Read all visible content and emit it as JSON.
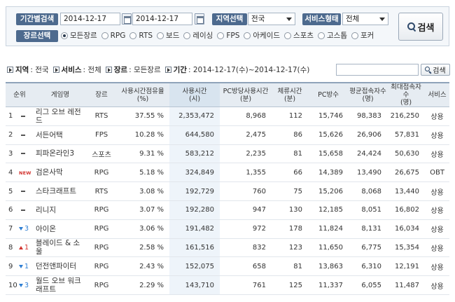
{
  "filters": {
    "period_label": "기간별검색",
    "start_date": "2014-12-17",
    "end_date": "2014-12-17",
    "tilde": "~",
    "region_label": "지역선택",
    "region_value": "전국",
    "service_label": "서비스형태",
    "service_value": "전체",
    "genre_label": "장르선택",
    "genres": [
      {
        "label": "모든장르",
        "checked": true
      },
      {
        "label": "RPG",
        "checked": false
      },
      {
        "label": "RTS",
        "checked": false
      },
      {
        "label": "보드",
        "checked": false
      },
      {
        "label": "레이싱",
        "checked": false
      },
      {
        "label": "FPS",
        "checked": false
      },
      {
        "label": "아케이드",
        "checked": false
      },
      {
        "label": "스포츠",
        "checked": false
      },
      {
        "label": "고스톱",
        "checked": false
      },
      {
        "label": "포커",
        "checked": false
      }
    ],
    "search_label": "검색"
  },
  "summary": {
    "region_key": "지역",
    "region_value": "전국",
    "service_key": "서비스",
    "service_value": "전체",
    "genre_key": "장르",
    "genre_value": "모든장르",
    "period_key": "기간",
    "period_value": "2014-12-17(수)~2014-12-17(수)",
    "search_label": "검색"
  },
  "table": {
    "headers": {
      "rank": "순위",
      "name": "게임명",
      "genre": "장르",
      "share": "사용시간점유율\n(%)",
      "usage": "사용시간\n(시)",
      "pc_avg": "PC방당사용시간\n(분)",
      "stay": "체류시간\n(분)",
      "pc_count": "PC방수",
      "avg_users": "평균접속자수\n(명)",
      "max_users": "최대접속자수\n(명)",
      "service": "서비스"
    },
    "rows": [
      {
        "rank": "1",
        "change_type": "same",
        "change": "",
        "name": "리그 오브 레전드",
        "genre": "RTS",
        "share": "37.55 %",
        "usage": "2,353,472",
        "pc_avg": "8,968",
        "stay": "112",
        "pc_count": "15,746",
        "avg_users": "98,383",
        "max_users": "216,250",
        "service": "상용"
      },
      {
        "rank": "2",
        "change_type": "same",
        "change": "",
        "name": "서든어택",
        "genre": "FPS",
        "share": "10.28 %",
        "usage": "644,580",
        "pc_avg": "2,475",
        "stay": "86",
        "pc_count": "15,626",
        "avg_users": "26,906",
        "max_users": "57,831",
        "service": "상용"
      },
      {
        "rank": "3",
        "change_type": "same",
        "change": "",
        "name": "피파온라인3",
        "genre": "스포츠",
        "share": "9.31 %",
        "usage": "583,212",
        "pc_avg": "2,235",
        "stay": "81",
        "pc_count": "15,658",
        "avg_users": "24,424",
        "max_users": "50,630",
        "service": "상용"
      },
      {
        "rank": "4",
        "change_type": "new",
        "change": "NEW",
        "name": "검은사막",
        "genre": "RPG",
        "share": "5.18 %",
        "usage": "324,849",
        "pc_avg": "1,355",
        "stay": "66",
        "pc_count": "14,389",
        "avg_users": "13,490",
        "max_users": "26,675",
        "service": "OBT"
      },
      {
        "rank": "5",
        "change_type": "same",
        "change": "",
        "name": "스타크래프트",
        "genre": "RTS",
        "share": "3.08 %",
        "usage": "192,729",
        "pc_avg": "760",
        "stay": "75",
        "pc_count": "15,206",
        "avg_users": "8,068",
        "max_users": "13,440",
        "service": "상용"
      },
      {
        "rank": "6",
        "change_type": "same",
        "change": "",
        "name": "리니지",
        "genre": "RPG",
        "share": "3.07 %",
        "usage": "192,280",
        "pc_avg": "947",
        "stay": "130",
        "pc_count": "12,185",
        "avg_users": "8,051",
        "max_users": "16,802",
        "service": "상용"
      },
      {
        "rank": "7",
        "change_type": "down",
        "change": "3",
        "name": "아이온",
        "genre": "RPG",
        "share": "3.06 %",
        "usage": "191,482",
        "pc_avg": "972",
        "stay": "178",
        "pc_count": "11,824",
        "avg_users": "8,131",
        "max_users": "16,034",
        "service": "상용"
      },
      {
        "rank": "8",
        "change_type": "up",
        "change": "1",
        "name": "블레이드 & 소울",
        "genre": "RPG",
        "share": "2.58 %",
        "usage": "161,516",
        "pc_avg": "832",
        "stay": "123",
        "pc_count": "11,650",
        "avg_users": "6,775",
        "max_users": "15,354",
        "service": "상용"
      },
      {
        "rank": "9",
        "change_type": "down",
        "change": "1",
        "name": "던전앤파이터",
        "genre": "RPG",
        "share": "2.43 %",
        "usage": "152,075",
        "pc_avg": "658",
        "stay": "81",
        "pc_count": "13,863",
        "avg_users": "6,310",
        "max_users": "12,191",
        "service": "상용"
      },
      {
        "rank": "10",
        "change_type": "down",
        "change": "3",
        "name": "월드 오브 워크래프트",
        "genre": "RPG",
        "share": "2.29 %",
        "usage": "143,710",
        "pc_avg": "761",
        "stay": "125",
        "pc_count": "11,337",
        "avg_users": "6,055",
        "max_users": "11,487",
        "service": "상용"
      }
    ]
  }
}
